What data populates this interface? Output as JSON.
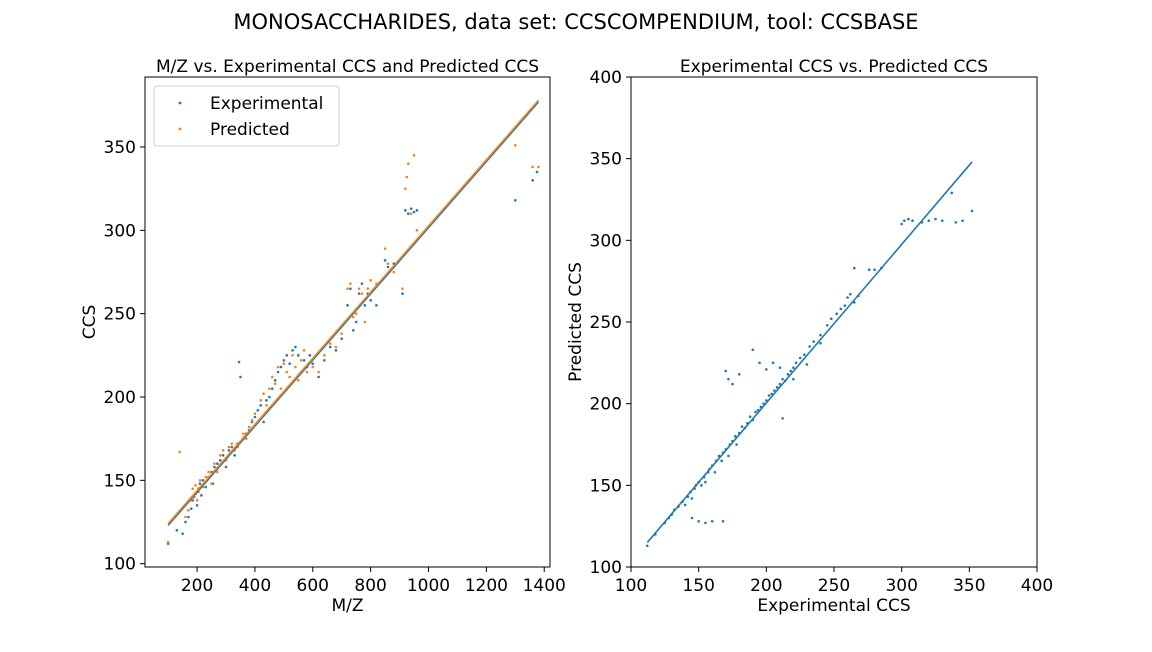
{
  "figure": {
    "title": "MONOSACCHARIDES, data set: CCSCOMPENDIUM, tool: CCSBASE"
  },
  "colors": {
    "experimental": "#1f77b4",
    "predicted": "#ff7f0e"
  },
  "chart_data": [
    {
      "type": "scatter",
      "title": "M/Z vs. Experimental CCS and Predicted CCS",
      "xlabel": "M/Z",
      "ylabel": "CCS",
      "xlim": [
        20,
        1420
      ],
      "ylim": [
        98,
        392
      ],
      "xticks": [
        200,
        400,
        600,
        800,
        1000,
        1200,
        1400
      ],
      "yticks": [
        100,
        150,
        200,
        250,
        300,
        350
      ],
      "legend": {
        "placement": "top-left",
        "entries": [
          "Experimental",
          "Predicted"
        ]
      },
      "series": [
        {
          "name": "Experimental",
          "color": "#1f77b4",
          "points": [
            [
              100,
              112
            ],
            [
              130,
              120
            ],
            [
              150,
              118
            ],
            [
              160,
              125
            ],
            [
              170,
              128
            ],
            [
              180,
              133
            ],
            [
              185,
              138
            ],
            [
              190,
              140
            ],
            [
              195,
              142
            ],
            [
              200,
              135
            ],
            [
              205,
              145
            ],
            [
              210,
              148
            ],
            [
              215,
              141
            ],
            [
              220,
              150
            ],
            [
              230,
              146
            ],
            [
              240,
              152
            ],
            [
              250,
              155
            ],
            [
              255,
              148
            ],
            [
              260,
              158
            ],
            [
              270,
              160
            ],
            [
              280,
              162
            ],
            [
              290,
              165
            ],
            [
              300,
              158
            ],
            [
              310,
              168
            ],
            [
              320,
              170
            ],
            [
              330,
              165
            ],
            [
              340,
              172
            ],
            [
              345,
              221
            ],
            [
              350,
              212
            ],
            [
              360,
              175
            ],
            [
              370,
              178
            ],
            [
              380,
              180
            ],
            [
              390,
              185
            ],
            [
              400,
              188
            ],
            [
              410,
              192
            ],
            [
              420,
              195
            ],
            [
              430,
              185
            ],
            [
              440,
              198
            ],
            [
              450,
              200
            ],
            [
              460,
              205
            ],
            [
              470,
              210
            ],
            [
              480,
              215
            ],
            [
              490,
              218
            ],
            [
              500,
              222
            ],
            [
              510,
              225
            ],
            [
              520,
              220
            ],
            [
              530,
              228
            ],
            [
              540,
              230
            ],
            [
              550,
              225
            ],
            [
              560,
              215
            ],
            [
              570,
              222
            ],
            [
              580,
              218
            ],
            [
              590,
              225
            ],
            [
              600,
              220
            ],
            [
              620,
              212
            ],
            [
              640,
              222
            ],
            [
              660,
              230
            ],
            [
              680,
              228
            ],
            [
              700,
              235
            ],
            [
              720,
              255
            ],
            [
              730,
              265
            ],
            [
              740,
              240
            ],
            [
              750,
              245
            ],
            [
              760,
              262
            ],
            [
              770,
              268
            ],
            [
              780,
              255
            ],
            [
              790,
              262
            ],
            [
              800,
              258
            ],
            [
              820,
              255
            ],
            [
              850,
              282
            ],
            [
              860,
              278
            ],
            [
              880,
              280
            ],
            [
              910,
              262
            ],
            [
              920,
              312
            ],
            [
              930,
              310
            ],
            [
              940,
              313
            ],
            [
              950,
              311
            ],
            [
              960,
              312
            ],
            [
              1300,
              318
            ],
            [
              1360,
              330
            ],
            [
              1375,
              335
            ]
          ]
        },
        {
          "name": "Predicted",
          "color": "#ff7f0e",
          "points": [
            [
              100,
              113
            ],
            [
              140,
              167
            ],
            [
              160,
              128
            ],
            [
              170,
              132
            ],
            [
              180,
              138
            ],
            [
              185,
              145
            ],
            [
              190,
              140
            ],
            [
              195,
              147
            ],
            [
              200,
              138
            ],
            [
              205,
              143
            ],
            [
              210,
              150
            ],
            [
              220,
              146
            ],
            [
              230,
              152
            ],
            [
              240,
              155
            ],
            [
              250,
              148
            ],
            [
              260,
              160
            ],
            [
              270,
              155
            ],
            [
              280,
              165
            ],
            [
              290,
              168
            ],
            [
              300,
              162
            ],
            [
              310,
              170
            ],
            [
              320,
              172
            ],
            [
              330,
              168
            ],
            [
              340,
              170
            ],
            [
              360,
              178
            ],
            [
              370,
              175
            ],
            [
              380,
              182
            ],
            [
              390,
              186
            ],
            [
              400,
              190
            ],
            [
              410,
              185
            ],
            [
              420,
              198
            ],
            [
              430,
              202
            ],
            [
              440,
              195
            ],
            [
              450,
              205
            ],
            [
              460,
              212
            ],
            [
              470,
              208
            ],
            [
              480,
              218
            ],
            [
              490,
              205
            ],
            [
              500,
              220
            ],
            [
              510,
              215
            ],
            [
              520,
              212
            ],
            [
              530,
              225
            ],
            [
              540,
              218
            ],
            [
              550,
              210
            ],
            [
              560,
              222
            ],
            [
              570,
              228
            ],
            [
              580,
              215
            ],
            [
              600,
              218
            ],
            [
              620,
              215
            ],
            [
              640,
              225
            ],
            [
              660,
              232
            ],
            [
              680,
              230
            ],
            [
              700,
              238
            ],
            [
              720,
              265
            ],
            [
              730,
              268
            ],
            [
              740,
              248
            ],
            [
              750,
              250
            ],
            [
              760,
              265
            ],
            [
              770,
              262
            ],
            [
              780,
              245
            ],
            [
              790,
              265
            ],
            [
              800,
              270
            ],
            [
              820,
              268
            ],
            [
              850,
              289
            ],
            [
              860,
              280
            ],
            [
              880,
              275
            ],
            [
              910,
              265
            ],
            [
              920,
              325
            ],
            [
              925,
              332
            ],
            [
              930,
              340
            ],
            [
              940,
              310
            ],
            [
              950,
              345
            ],
            [
              960,
              300
            ],
            [
              1300,
              351
            ],
            [
              1360,
              338
            ],
            [
              1380,
              338
            ]
          ]
        }
      ],
      "fit_lines": [
        {
          "series": "Experimental",
          "from": [
            100,
            123
          ],
          "to": [
            1380,
            377
          ]
        },
        {
          "series": "Predicted",
          "from": [
            100,
            124
          ],
          "to": [
            1380,
            378
          ]
        }
      ]
    },
    {
      "type": "scatter",
      "title": "Experimental CCS vs. Predicted CCS",
      "xlabel": "Experimental CCS",
      "ylabel": "Predicted CCS",
      "xlim": [
        100,
        400
      ],
      "ylim": [
        100,
        400
      ],
      "xticks": [
        100,
        150,
        200,
        250,
        300,
        350,
        400
      ],
      "yticks": [
        100,
        150,
        200,
        250,
        300,
        350,
        400
      ],
      "series": [
        {
          "color": "#1f77b4",
          "points": [
            [
              112,
              113
            ],
            [
              118,
              120
            ],
            [
              125,
              127
            ],
            [
              128,
              130
            ],
            [
              130,
              132
            ],
            [
              132,
              135
            ],
            [
              135,
              137
            ],
            [
              138,
              140
            ],
            [
              140,
              138
            ],
            [
              142,
              143
            ],
            [
              144,
              146
            ],
            [
              145,
              142
            ],
            [
              147,
              148
            ],
            [
              148,
              150
            ],
            [
              150,
              152
            ],
            [
              152,
              150
            ],
            [
              154,
              155
            ],
            [
              155,
              152
            ],
            [
              157,
              158
            ],
            [
              158,
              160
            ],
            [
              160,
              162
            ],
            [
              162,
              158
            ],
            [
              163,
              165
            ],
            [
              165,
              168
            ],
            [
              167,
              165
            ],
            [
              168,
              170
            ],
            [
              170,
              172
            ],
            [
              172,
              168
            ],
            [
              173,
              175
            ],
            [
              175,
              177
            ],
            [
              177,
              180
            ],
            [
              178,
              175
            ],
            [
              180,
              182
            ],
            [
              182,
              186
            ],
            [
              184,
              185
            ],
            [
              186,
              188
            ],
            [
              188,
              192
            ],
            [
              190,
              190
            ],
            [
              192,
              195
            ],
            [
              194,
              196
            ],
            [
              196,
              198
            ],
            [
              198,
              200
            ],
            [
              200,
              202
            ],
            [
              202,
              205
            ],
            [
              204,
              206
            ],
            [
              206,
              208
            ],
            [
              208,
              210
            ],
            [
              210,
              212
            ],
            [
              212,
              215
            ],
            [
              214,
              214
            ],
            [
              216,
              218
            ],
            [
              218,
              220
            ],
            [
              220,
              222
            ],
            [
              222,
              225
            ],
            [
              225,
              228
            ],
            [
              228,
              230
            ],
            [
              232,
              235
            ],
            [
              235,
              238
            ],
            [
              240,
              242
            ],
            [
              245,
              248
            ],
            [
              248,
              252
            ],
            [
              252,
              255
            ],
            [
              255,
              258
            ],
            [
              258,
              260
            ],
            [
              260,
              265
            ],
            [
              262,
              267
            ],
            [
              265,
              262
            ],
            [
              268,
              266
            ],
            [
              265,
              283
            ],
            [
              170,
              220
            ],
            [
              172,
              215
            ],
            [
              175,
              212
            ],
            [
              180,
              218
            ],
            [
              190,
              233
            ],
            [
              195,
              225
            ],
            [
              200,
              221
            ],
            [
              205,
              225
            ],
            [
              210,
              222
            ],
            [
              168,
              128
            ],
            [
              145,
              130
            ],
            [
              150,
              128
            ],
            [
              155,
              127
            ],
            [
              160,
              128
            ],
            [
              212,
              191
            ],
            [
              220,
              215
            ],
            [
              230,
              224
            ],
            [
              240,
              237
            ],
            [
              276,
              282
            ],
            [
              280,
              282
            ],
            [
              285,
              283
            ],
            [
              300,
              310
            ],
            [
              302,
              312
            ],
            [
              305,
              313
            ],
            [
              308,
              312
            ],
            [
              315,
              311
            ],
            [
              320,
              312
            ],
            [
              325,
              313
            ],
            [
              330,
              312
            ],
            [
              337,
              329
            ],
            [
              340,
              311
            ],
            [
              345,
              312
            ],
            [
              352,
              318
            ]
          ]
        }
      ],
      "fit_lines": [
        {
          "from": [
            112,
            115
          ],
          "to": [
            352,
            348
          ]
        }
      ]
    }
  ]
}
